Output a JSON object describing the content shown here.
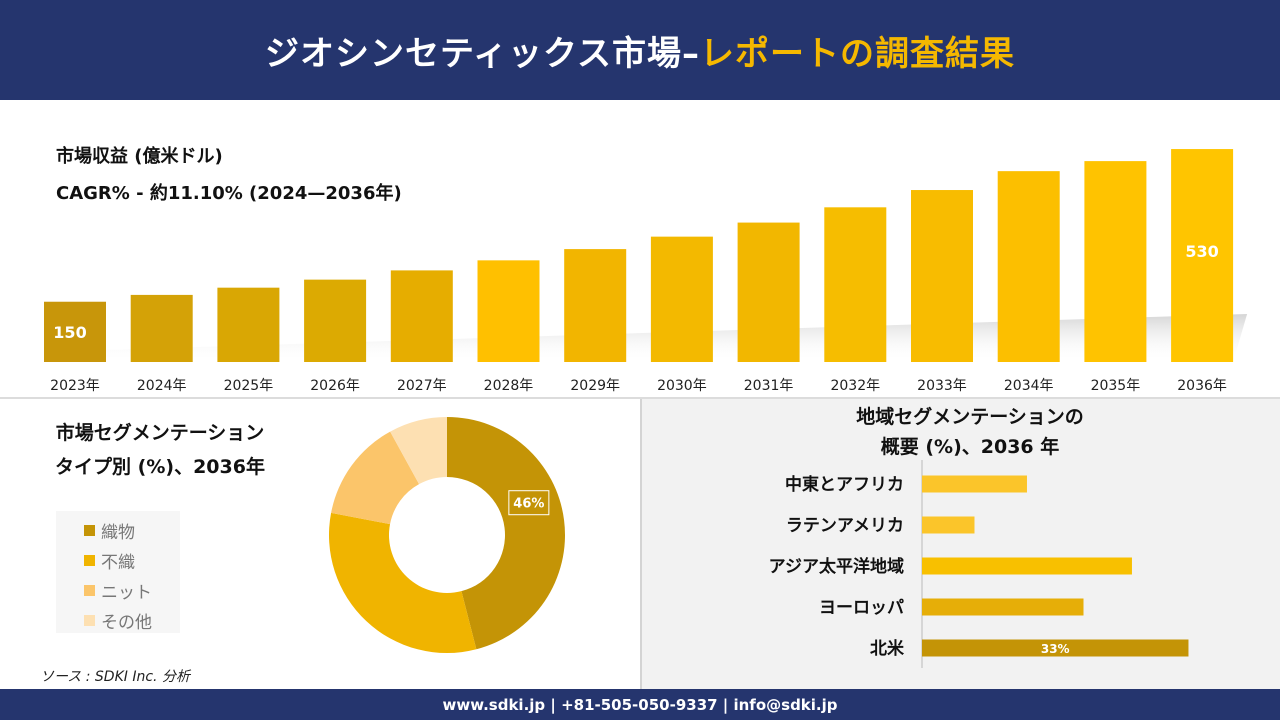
{
  "header": {
    "title_main": "ジオシンセティックス市場–",
    "title_accent": "レポートの調査結果"
  },
  "revenue": {
    "title": "市場収益 (億米ドル)",
    "cagr": "CAGR% - 約11.10% (2024—2036年)"
  },
  "segment": {
    "title_line1": "市場セグメンテーション",
    "title_line2": "タイプ別 (%)、2036年",
    "legend": [
      "織物",
      "不織",
      "ニット",
      "その他"
    ]
  },
  "region": {
    "title_line1": "地域セグメンテーションの",
    "title_line2": "概要 (%)、2036 年"
  },
  "source": "ソース : SDKI Inc. 分析",
  "footer": "www.sdki.jp | +81-505-050-9337 | info@sdki.jp",
  "chart_data": [
    {
      "type": "bar",
      "categories": [
        "2023年",
        "2024年",
        "2025年",
        "2026年",
        "2027年",
        "2028年",
        "2029年",
        "2030年",
        "2031年",
        "2032年",
        "2033年",
        "2034年",
        "2035年",
        "2036年"
      ],
      "values": [
        150,
        167,
        185,
        205,
        228,
        253,
        281,
        312,
        347,
        385,
        428,
        475,
        500,
        530
      ],
      "data_labels": {
        "0": "150",
        "13": "530"
      },
      "ylim": [
        0,
        560
      ],
      "colors": [
        "#c8960a",
        "#d4a207",
        "#d9a704",
        "#dcaa02",
        "#e6ad00",
        "#ffc000",
        "#f2b500",
        "#f3b900",
        "#f2b700",
        "#f6bd00",
        "#f8bc00",
        "#fcbf00",
        "#ffc300",
        "#ffc500"
      ]
    },
    {
      "type": "pie",
      "labels": [
        "織物",
        "不織",
        "ニット",
        "その他"
      ],
      "values": [
        46,
        32,
        14,
        8
      ],
      "data_labels": {
        "0": "46%"
      },
      "colors": [
        "#c49406",
        "#f0b400",
        "#fbc56a",
        "#fde0b2"
      ]
    },
    {
      "type": "bar",
      "orientation": "horizontal",
      "categories": [
        "中東とアフリカ",
        "ラテンアメリカ",
        "アジア太平洋地域",
        "ヨーロッパ",
        "北米"
      ],
      "values": [
        13,
        6.5,
        26,
        20,
        33
      ],
      "data_labels": {
        "4": "33%"
      },
      "xlim": [
        0,
        40
      ],
      "colors": [
        "#fbc52a",
        "#fbc52a",
        "#f8c000",
        "#e6ae08",
        "#c49406"
      ]
    }
  ]
}
